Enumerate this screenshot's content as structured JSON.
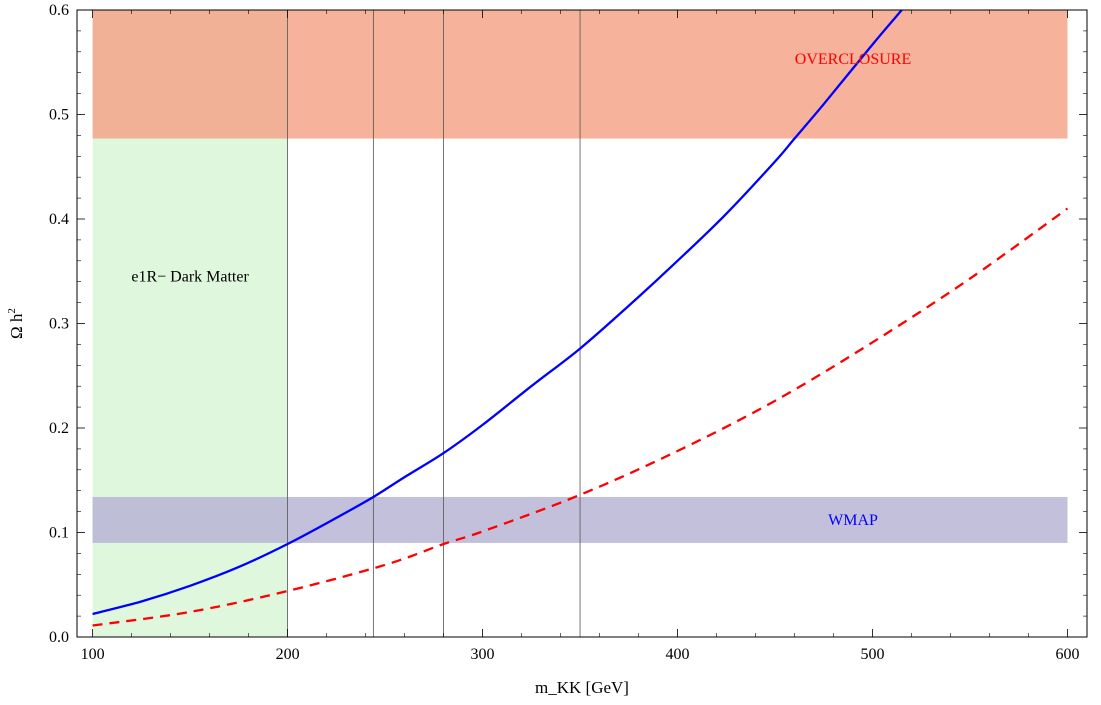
{
  "chart_data": {
    "type": "line",
    "title": "",
    "xlabel": "m_KK [GeV]",
    "ylabel_main": "Ω h",
    "ylabel_sup": "2",
    "xlim": [
      92,
      610
    ],
    "ylim": [
      0,
      0.6
    ],
    "xticks": [
      100,
      200,
      300,
      400,
      500,
      600
    ],
    "yticks": [
      0.0,
      0.1,
      0.2,
      0.3,
      0.4,
      0.5,
      0.6
    ],
    "xtick_labels": [
      "100",
      "200",
      "300",
      "400",
      "500",
      "600"
    ],
    "ytick_labels": [
      "0.0",
      "0.1",
      "0.2",
      "0.3",
      "0.4",
      "0.5",
      "0.6"
    ],
    "regions": [
      {
        "name": "dark-matter-region",
        "label": "e1R− Dark Matter",
        "x": [
          100,
          200
        ],
        "y": [
          0,
          0.6
        ],
        "color": "#d9f7d7",
        "label_color": "#000000",
        "label_pos": [
          150,
          0.345
        ]
      },
      {
        "name": "overclosure-band",
        "label": "OVERCLOSURE",
        "x": [
          100,
          600
        ],
        "y": [
          0.477,
          0.6
        ],
        "color": "#f5a58a",
        "label_color": "#ff0000",
        "label_pos": [
          490,
          0.553
        ]
      },
      {
        "name": "wmap-band",
        "label": "WMAP",
        "x": [
          100,
          600
        ],
        "y": [
          0.09,
          0.134
        ],
        "color": "#b8b5d6",
        "label_color": "#0000ff",
        "label_pos": [
          490,
          0.112
        ]
      }
    ],
    "vertical_lines": [
      200,
      244,
      280,
      350
    ],
    "series": [
      {
        "style": "solid",
        "color": "#0000ff",
        "x": [
          100,
          125,
          150,
          175,
          200,
          225,
          244,
          260,
          280,
          300,
          325,
          350,
          375,
          400,
          425,
          450,
          460,
          475,
          500,
          515
        ],
        "y": [
          0.022,
          0.034,
          0.049,
          0.067,
          0.089,
          0.114,
          0.134,
          0.153,
          0.176,
          0.203,
          0.24,
          0.276,
          0.317,
          0.36,
          0.405,
          0.455,
          0.477,
          0.51,
          0.567,
          0.6
        ]
      },
      {
        "style": "dashed",
        "color": "#ff0000",
        "x": [
          100,
          150,
          200,
          250,
          280,
          300,
          350,
          400,
          450,
          500,
          550,
          600
        ],
        "y": [
          0.011,
          0.024,
          0.044,
          0.069,
          0.089,
          0.101,
          0.136,
          0.178,
          0.226,
          0.282,
          0.343,
          0.41
        ]
      }
    ]
  }
}
